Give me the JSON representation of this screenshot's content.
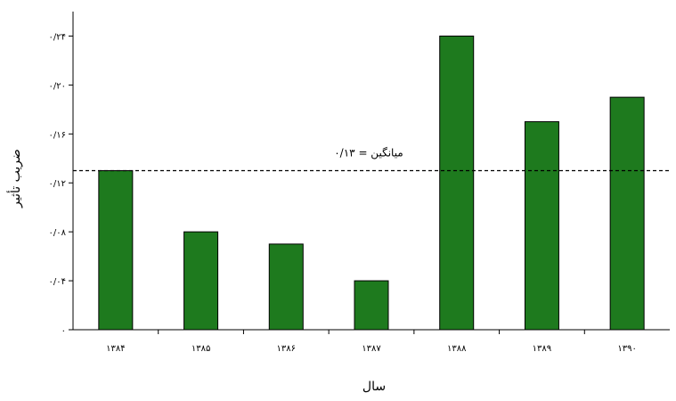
{
  "chart_data": {
    "type": "bar",
    "categories": [
      "۱۳۸۴",
      "۱۳۸۵",
      "۱۳۸۶",
      "۱۳۸۷",
      "۱۳۸۸",
      "۱۳۸۹",
      "۱۳۹۰"
    ],
    "values": [
      0.13,
      0.08,
      0.07,
      0.04,
      0.24,
      0.17,
      0.19
    ],
    "title": "",
    "xlabel": "سال",
    "ylabel": "ضریب تأثیر",
    "ylim": [
      0,
      0.26
    ],
    "yticks": [
      {
        "value": 0,
        "label": "۰"
      },
      {
        "value": 0.04,
        "label": "۰/۰۴"
      },
      {
        "value": 0.08,
        "label": "۰/۰۸"
      },
      {
        "value": 0.12,
        "label": "۰/۱۲"
      },
      {
        "value": 0.16,
        "label": "۰/۱۶"
      },
      {
        "value": 0.2,
        "label": "۰/۲۰"
      },
      {
        "value": 0.24,
        "label": "۰/۲۴"
      }
    ],
    "mean_line": {
      "value": 0.13,
      "label": "میانگین = ۰/۱۳",
      "style": "dashed"
    },
    "grid": false,
    "legend": "none",
    "colors": {
      "bar": "#1e7a1e",
      "bar_stroke": "#000000",
      "axis": "#000000"
    }
  }
}
